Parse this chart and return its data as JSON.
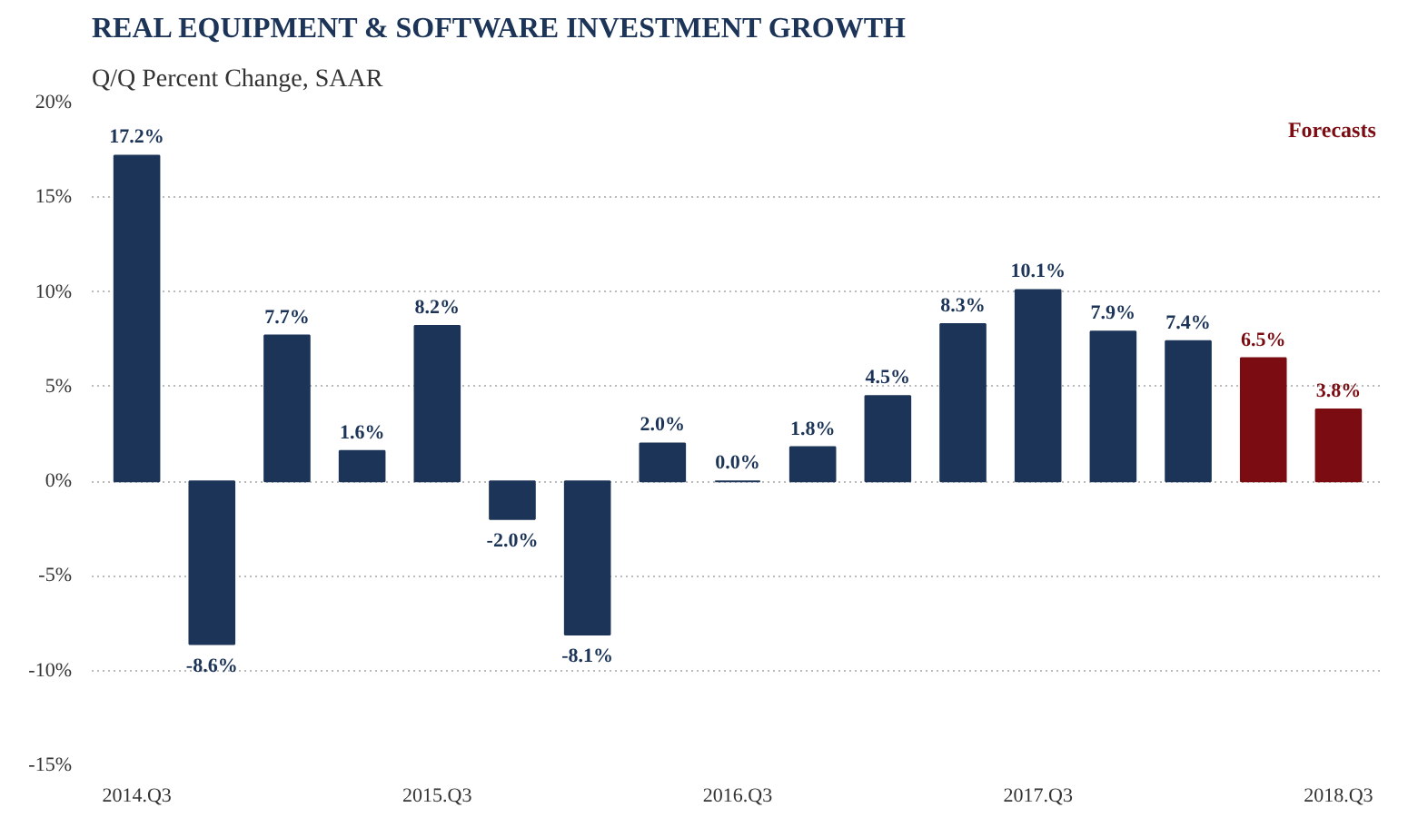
{
  "chart_data": {
    "type": "bar",
    "title": "REAL EQUIPMENT & SOFTWARE INVESTMENT GROWTH",
    "subtitle": "Q/Q Percent Change, SAAR",
    "categories": [
      "2014.Q3",
      null,
      null,
      null,
      "2015.Q3",
      null,
      null,
      null,
      "2016.Q3",
      null,
      null,
      null,
      "2017.Q3",
      null,
      null,
      null,
      "2018.Q3"
    ],
    "values": [
      17.2,
      -8.6,
      7.7,
      1.6,
      8.2,
      -2.0,
      -8.1,
      2.0,
      0.0,
      1.8,
      4.5,
      8.3,
      10.1,
      7.9,
      7.4,
      6.5,
      3.8
    ],
    "colors": [
      "#1c3457",
      "#1c3457",
      "#1c3457",
      "#1c3457",
      "#1c3457",
      "#1c3457",
      "#1c3457",
      "#1c3457",
      "#1c3457",
      "#1c3457",
      "#1c3457",
      "#1c3457",
      "#1c3457",
      "#1c3457",
      "#1c3457",
      "#7b0d12",
      "#7b0d12"
    ],
    "value_labels": [
      "17.2%",
      "-8.6%",
      "7.7%",
      "1.6%",
      "8.2%",
      "-2.0%",
      "-8.1%",
      "2.0%",
      "0.0%",
      "1.8%",
      "4.5%",
      "8.3%",
      "10.1%",
      "7.9%",
      "7.4%",
      "6.5%",
      "3.8%"
    ],
    "ylim": [
      -15,
      20
    ],
    "yticks": [
      {
        "value": -15,
        "label": "-15%"
      },
      {
        "value": -10,
        "label": "-10%"
      },
      {
        "value": -5,
        "label": "-5%"
      },
      {
        "value": 0,
        "label": "0%"
      },
      {
        "value": 5,
        "label": "5%"
      },
      {
        "value": 10,
        "label": "10%"
      },
      {
        "value": 15,
        "label": "15%"
      },
      {
        "value": 20,
        "label": "20%"
      }
    ],
    "grid": "y",
    "annotations": [
      "Forecasts"
    ]
  }
}
